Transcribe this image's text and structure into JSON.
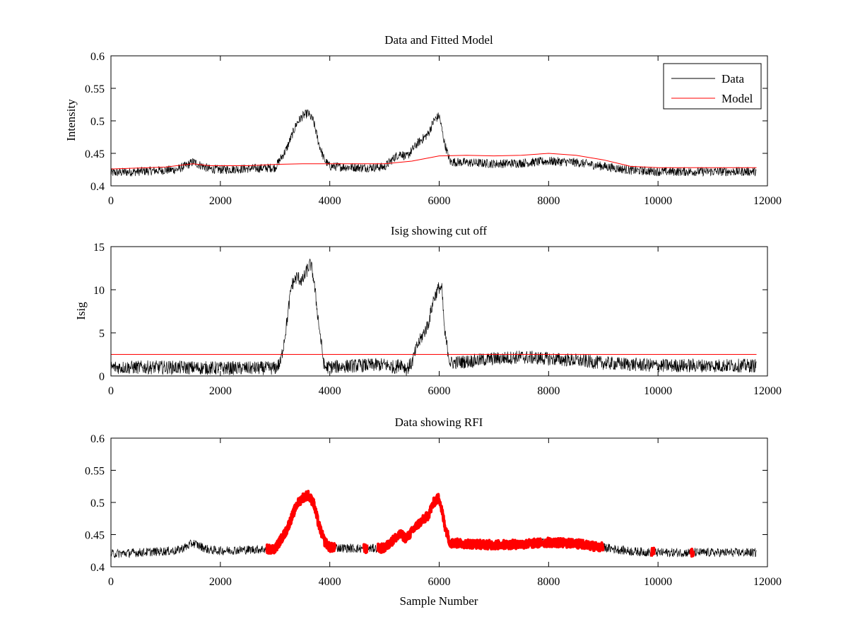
{
  "chart_data": [
    {
      "type": "line",
      "title": "Data and Fitted Model",
      "xlabel": "",
      "ylabel": "Intensity",
      "xlim": [
        0,
        12000
      ],
      "ylim": [
        0.4,
        0.6
      ],
      "xticks": [
        0,
        2000,
        4000,
        6000,
        8000,
        10000,
        12000
      ],
      "xtick_labels": [
        "0",
        "2000",
        "4000",
        "6000",
        "8000",
        "10000",
        "12000"
      ],
      "yticks": [
        0.4,
        0.45,
        0.5,
        0.55,
        0.6
      ],
      "ytick_labels": [
        "0.4",
        "0.45",
        "0.5",
        "0.55",
        "0.6"
      ],
      "grid": false,
      "legend_position": "top-right",
      "series": [
        {
          "name": "Data",
          "color": "#000000",
          "style": "noisy-line",
          "noise": 0.007,
          "x": [
            0,
            1200,
            1400,
            1500,
            1600,
            1800,
            2000,
            3000,
            3200,
            3400,
            3500,
            3600,
            3700,
            3800,
            3900,
            4000,
            4600,
            5000,
            5200,
            5300,
            5400,
            5600,
            5800,
            5900,
            6000,
            6100,
            6200,
            7000,
            7500,
            8000,
            8500,
            9000,
            9500,
            10000,
            11000,
            11800
          ],
          "y": [
            0.42,
            0.425,
            0.432,
            0.437,
            0.433,
            0.426,
            0.425,
            0.428,
            0.455,
            0.497,
            0.507,
            0.512,
            0.5,
            0.465,
            0.44,
            0.43,
            0.428,
            0.429,
            0.445,
            0.45,
            0.444,
            0.465,
            0.48,
            0.5,
            0.508,
            0.465,
            0.437,
            0.434,
            0.435,
            0.438,
            0.436,
            0.43,
            0.424,
            0.422,
            0.422,
            0.422
          ]
        },
        {
          "name": "Model",
          "color": "#ff0000",
          "style": "line",
          "x": [
            0,
            1000,
            1500,
            1800,
            2500,
            3000,
            3500,
            4000,
            4500,
            5000,
            5500,
            6000,
            6500,
            7000,
            7500,
            8000,
            8500,
            9000,
            9500,
            10000,
            11000,
            11800
          ],
          "y": [
            0.426,
            0.429,
            0.434,
            0.431,
            0.431,
            0.433,
            0.434,
            0.434,
            0.434,
            0.434,
            0.438,
            0.446,
            0.447,
            0.446,
            0.447,
            0.45,
            0.447,
            0.44,
            0.43,
            0.428,
            0.428,
            0.428
          ]
        }
      ]
    },
    {
      "type": "line",
      "title": "Isig showing cut off",
      "xlabel": "",
      "ylabel": "Isig",
      "xlim": [
        0,
        12000
      ],
      "ylim": [
        0,
        15
      ],
      "xticks": [
        0,
        2000,
        4000,
        6000,
        8000,
        10000,
        12000
      ],
      "xtick_labels": [
        "0",
        "2000",
        "4000",
        "6000",
        "8000",
        "10000",
        "12000"
      ],
      "yticks": [
        0,
        5,
        10,
        15
      ],
      "ytick_labels": [
        "0",
        "5",
        "10",
        "15"
      ],
      "grid": false,
      "series": [
        {
          "color": "#000000",
          "style": "noisy-line",
          "noise": 0.8,
          "x": [
            0,
            1000,
            2000,
            3000,
            3100,
            3200,
            3300,
            3400,
            3500,
            3600,
            3650,
            3700,
            3800,
            3900,
            4500,
            5000,
            5200,
            5300,
            5400,
            5500,
            5600,
            5800,
            5900,
            6000,
            6050,
            6100,
            6200,
            7000,
            7500,
            8000,
            8500,
            9000,
            10000,
            11800
          ],
          "y": [
            1.0,
            1.0,
            0.9,
            0.9,
            1.5,
            5.5,
            10.5,
            11.5,
            11.0,
            12.5,
            13.0,
            11.5,
            6.0,
            1.0,
            1.2,
            1.3,
            1.0,
            1.5,
            0.8,
            1.5,
            3.5,
            6.0,
            9.0,
            10.3,
            10.0,
            5.0,
            1.5,
            2.0,
            2.2,
            2.0,
            1.8,
            1.5,
            1.2,
            1.2
          ]
        },
        {
          "color": "#ff0000",
          "style": "line",
          "x": [
            0,
            11800
          ],
          "y": [
            2.5,
            2.5
          ]
        }
      ]
    },
    {
      "type": "line",
      "title": "Data showing RFI",
      "xlabel": "Sample Number",
      "ylabel": "",
      "xlim": [
        0,
        12000
      ],
      "ylim": [
        0.4,
        0.6
      ],
      "xticks": [
        0,
        2000,
        4000,
        6000,
        8000,
        10000,
        12000
      ],
      "xtick_labels": [
        "0",
        "2000",
        "4000",
        "6000",
        "8000",
        "10000",
        "12000"
      ],
      "yticks": [
        0.4,
        0.45,
        0.5,
        0.55,
        0.6
      ],
      "ytick_labels": [
        "0.4",
        "0.45",
        "0.5",
        "0.55",
        "0.6"
      ],
      "grid": false,
      "series": [
        {
          "color": "#000000",
          "style": "noisy-line",
          "noise": 0.007,
          "x": [
            0,
            1200,
            1400,
            1500,
            1600,
            1800,
            2000,
            3000,
            3200,
            3400,
            3500,
            3600,
            3700,
            3800,
            3900,
            4000,
            4600,
            5000,
            5200,
            5300,
            5400,
            5600,
            5800,
            5900,
            6000,
            6100,
            6200,
            7000,
            7500,
            8000,
            8500,
            9000,
            9500,
            10000,
            11000,
            11800
          ],
          "y": [
            0.42,
            0.425,
            0.432,
            0.437,
            0.433,
            0.426,
            0.425,
            0.428,
            0.455,
            0.497,
            0.507,
            0.512,
            0.5,
            0.465,
            0.44,
            0.43,
            0.428,
            0.429,
            0.445,
            0.45,
            0.444,
            0.465,
            0.48,
            0.5,
            0.508,
            0.465,
            0.437,
            0.434,
            0.435,
            0.438,
            0.436,
            0.43,
            0.424,
            0.422,
            0.422,
            0.422
          ]
        },
        {
          "color": "#ff0000",
          "style": "flagged-markers",
          "noise": 0.007,
          "ranges": [
            [
              2850,
              4100
            ],
            [
              4620,
              4680
            ],
            [
              4880,
              9000
            ],
            [
              9880,
              9930
            ],
            [
              10600,
              10650
            ]
          ]
        }
      ]
    }
  ]
}
